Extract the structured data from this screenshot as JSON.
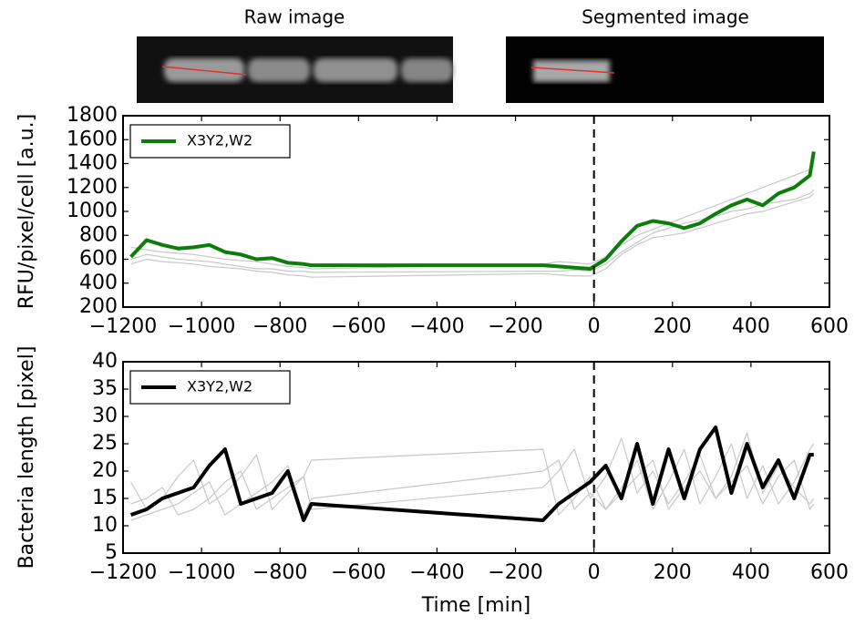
{
  "header": {
    "raw_title": "Raw image",
    "segmented_title": "Segmented image"
  },
  "chart_data": [
    {
      "type": "line",
      "ylabel": "RFU/pixel/cell [a.u.]",
      "x": [
        -1180,
        -1140,
        -1100,
        -1060,
        -1020,
        -980,
        -940,
        -900,
        -860,
        -820,
        -780,
        -740,
        -720,
        -130,
        -90,
        -50,
        -10,
        30,
        70,
        110,
        150,
        190,
        230,
        270,
        310,
        350,
        390,
        430,
        470,
        510,
        550,
        560
      ],
      "series": [
        {
          "color": "#c8c8c8",
          "values": [
            560,
            600,
            580,
            570,
            560,
            540,
            530,
            520,
            500,
            490,
            470,
            460,
            450,
            480,
            470,
            460,
            460,
            520,
            640,
            720,
            780,
            800,
            820,
            860,
            900,
            940,
            980,
            1000,
            1040,
            1080,
            1120,
            1150
          ]
        },
        {
          "color": "#c8c8c8",
          "values": [
            700,
            680,
            660,
            650,
            640,
            620,
            600,
            590,
            580,
            560,
            540,
            530,
            520,
            560,
            580,
            570,
            560,
            620,
            720,
            800,
            850,
            900,
            950,
            1000,
            1050,
            1100,
            1150,
            1200,
            1250,
            1300,
            1350,
            1380
          ]
        },
        {
          "color": "#c8c8c8",
          "values": [
            600,
            640,
            620,
            600,
            590,
            580,
            560,
            540,
            520,
            520,
            500,
            500,
            490,
            500,
            500,
            510,
            500,
            560,
            660,
            740,
            820,
            860,
            900,
            930,
            960,
            1000,
            1020,
            1060,
            1080,
            1100,
            1150,
            1180
          ]
        },
        {
          "name": "X3Y2,W2",
          "color": "#0a7d0a",
          "values": [
            620,
            760,
            720,
            690,
            700,
            720,
            660,
            640,
            600,
            610,
            570,
            560,
            550,
            550,
            540,
            530,
            520,
            600,
            750,
            880,
            920,
            900,
            860,
            900,
            980,
            1050,
            1100,
            1050,
            1150,
            1200,
            1300,
            1500
          ]
        }
      ],
      "xlim": [
        -1200,
        600
      ],
      "xticks": [
        {
          "value": -1200,
          "label": "−1200"
        },
        {
          "value": -1000,
          "label": "−1000"
        },
        {
          "value": -800,
          "label": "−800"
        },
        {
          "value": -600,
          "label": "−600"
        },
        {
          "value": -400,
          "label": "−400"
        },
        {
          "value": -200,
          "label": "−200"
        },
        0,
        200,
        400,
        600
      ],
      "ylim": [
        200,
        1800
      ],
      "yticks": [
        200,
        400,
        600,
        800,
        1000,
        1200,
        1400,
        1600,
        1800
      ],
      "vline": 0,
      "legend": "upper left"
    },
    {
      "type": "line",
      "ylabel": "Bacteria length [pixel]",
      "xlabel": "Time [min]",
      "x": [
        -1180,
        -1140,
        -1100,
        -1060,
        -1020,
        -980,
        -940,
        -900,
        -860,
        -820,
        -780,
        -740,
        -720,
        -130,
        -90,
        -50,
        -10,
        30,
        70,
        110,
        150,
        190,
        230,
        270,
        310,
        350,
        390,
        430,
        470,
        510,
        550,
        560
      ],
      "series": [
        {
          "color": "#c8c8c8",
          "values": [
            14,
            15,
            17,
            12,
            13,
            15,
            18,
            20,
            13,
            15,
            17,
            19,
            22,
            24,
            12,
            15,
            19,
            13,
            17,
            22,
            13,
            18,
            24,
            14,
            19,
            25,
            15,
            21,
            14,
            18,
            24,
            25
          ]
        },
        {
          "color": "#c8c8c8",
          "values": [
            18,
            13,
            15,
            19,
            22,
            14,
            16,
            19,
            23,
            13,
            16,
            19,
            13,
            17,
            20,
            24,
            15,
            19,
            26,
            16,
            20,
            14,
            18,
            23,
            15,
            19,
            27,
            16,
            21,
            17,
            14,
            15
          ]
        },
        {
          "color": "#c8c8c8",
          "values": [
            11,
            12,
            13,
            14,
            16,
            18,
            12,
            14,
            16,
            18,
            21,
            12,
            15,
            20,
            22,
            13,
            16,
            13,
            16,
            19,
            22,
            13,
            17,
            20,
            15,
            18,
            21,
            14,
            19,
            22,
            13,
            14
          ]
        },
        {
          "name": "X3Y2,W2",
          "color": "#000000",
          "values": [
            12,
            13,
            15,
            16,
            17,
            21,
            24,
            14,
            15,
            16,
            20,
            11,
            14,
            11,
            14,
            16,
            18,
            21,
            15,
            25,
            14,
            24,
            15,
            24,
            28,
            16,
            25,
            17,
            22,
            15,
            23,
            23
          ]
        }
      ],
      "xlim": [
        -1200,
        600
      ],
      "xticks": [
        {
          "value": -1200,
          "label": "−1200"
        },
        {
          "value": -1000,
          "label": "−1000"
        },
        {
          "value": -800,
          "label": "−800"
        },
        {
          "value": -600,
          "label": "−600"
        },
        {
          "value": -400,
          "label": "−400"
        },
        {
          "value": -200,
          "label": "−200"
        },
        0,
        200,
        400,
        600
      ],
      "ylim": [
        5,
        40
      ],
      "yticks": [
        5,
        10,
        15,
        20,
        25,
        30,
        35,
        40
      ],
      "vline": 0,
      "legend": "upper left"
    }
  ]
}
